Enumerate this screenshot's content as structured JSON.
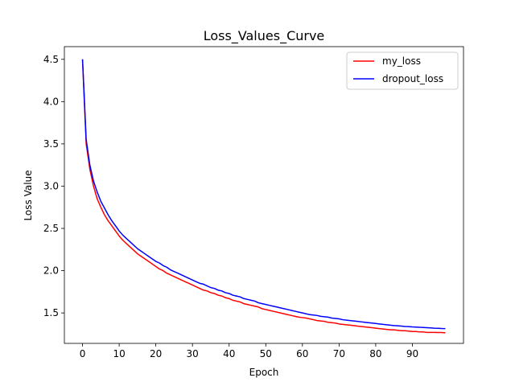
{
  "chart_data": {
    "type": "line",
    "title": "Loss_Values_Curve",
    "xlabel": "Epoch",
    "ylabel": "Loss Value",
    "xlim": [
      -4.95,
      103.95
    ],
    "ylim": [
      1.14,
      4.65
    ],
    "xticks": [
      0,
      10,
      20,
      30,
      40,
      50,
      60,
      70,
      80,
      90
    ],
    "yticks": [
      1.5,
      2.0,
      2.5,
      3.0,
      3.5,
      4.0,
      4.5
    ],
    "ytick_labels": [
      "1.5",
      "2.0",
      "2.5",
      "3.0",
      "3.5",
      "4.0",
      "4.5"
    ],
    "grid": false,
    "legend": "top-right",
    "x": [
      0,
      1,
      2,
      3,
      4,
      5,
      6,
      7,
      8,
      9,
      10,
      11,
      12,
      13,
      14,
      15,
      16,
      17,
      18,
      19,
      20,
      21,
      22,
      23,
      24,
      25,
      26,
      27,
      28,
      29,
      30,
      31,
      32,
      33,
      34,
      35,
      36,
      37,
      38,
      39,
      40,
      41,
      42,
      43,
      44,
      45,
      46,
      47,
      48,
      49,
      50,
      51,
      52,
      53,
      54,
      55,
      56,
      57,
      58,
      59,
      60,
      61,
      62,
      63,
      64,
      65,
      66,
      67,
      68,
      69,
      70,
      71,
      72,
      73,
      74,
      75,
      76,
      77,
      78,
      79,
      80,
      81,
      82,
      83,
      84,
      85,
      86,
      87,
      88,
      89,
      90,
      91,
      92,
      93,
      94,
      95,
      96,
      97,
      98,
      99
    ],
    "series": [
      {
        "name": "my_loss",
        "color": "#ff0000",
        "values": [
          4.5,
          3.5,
          3.2,
          3.0,
          2.85,
          2.75,
          2.66,
          2.59,
          2.53,
          2.47,
          2.41,
          2.36,
          2.32,
          2.28,
          2.24,
          2.2,
          2.17,
          2.14,
          2.11,
          2.08,
          2.05,
          2.02,
          2.0,
          1.97,
          1.95,
          1.93,
          1.91,
          1.89,
          1.87,
          1.85,
          1.83,
          1.81,
          1.79,
          1.77,
          1.76,
          1.74,
          1.73,
          1.71,
          1.7,
          1.68,
          1.67,
          1.65,
          1.64,
          1.63,
          1.61,
          1.6,
          1.59,
          1.58,
          1.57,
          1.55,
          1.54,
          1.53,
          1.52,
          1.51,
          1.5,
          1.49,
          1.48,
          1.47,
          1.46,
          1.45,
          1.445,
          1.44,
          1.43,
          1.42,
          1.41,
          1.405,
          1.4,
          1.39,
          1.385,
          1.38,
          1.37,
          1.365,
          1.36,
          1.355,
          1.35,
          1.345,
          1.34,
          1.335,
          1.33,
          1.325,
          1.32,
          1.315,
          1.31,
          1.305,
          1.3,
          1.3,
          1.295,
          1.29,
          1.29,
          1.285,
          1.28,
          1.28,
          1.275,
          1.275,
          1.27,
          1.27,
          1.27,
          1.268,
          1.268,
          1.265
        ]
      },
      {
        "name": "dropout_loss",
        "color": "#0000ff",
        "values": [
          4.5,
          3.55,
          3.25,
          3.06,
          2.93,
          2.82,
          2.74,
          2.66,
          2.59,
          2.53,
          2.47,
          2.42,
          2.38,
          2.34,
          2.3,
          2.26,
          2.23,
          2.2,
          2.17,
          2.14,
          2.11,
          2.09,
          2.06,
          2.04,
          2.01,
          1.99,
          1.97,
          1.95,
          1.93,
          1.91,
          1.89,
          1.87,
          1.85,
          1.84,
          1.82,
          1.8,
          1.79,
          1.77,
          1.76,
          1.74,
          1.73,
          1.71,
          1.7,
          1.69,
          1.67,
          1.66,
          1.65,
          1.64,
          1.62,
          1.61,
          1.6,
          1.59,
          1.58,
          1.57,
          1.56,
          1.55,
          1.54,
          1.53,
          1.52,
          1.51,
          1.5,
          1.49,
          1.48,
          1.475,
          1.47,
          1.46,
          1.455,
          1.45,
          1.44,
          1.435,
          1.43,
          1.42,
          1.415,
          1.41,
          1.405,
          1.4,
          1.395,
          1.39,
          1.385,
          1.38,
          1.375,
          1.37,
          1.365,
          1.36,
          1.355,
          1.35,
          1.348,
          1.345,
          1.34,
          1.338,
          1.335,
          1.333,
          1.33,
          1.328,
          1.325,
          1.323,
          1.32,
          1.318,
          1.316,
          1.315
        ]
      }
    ]
  }
}
